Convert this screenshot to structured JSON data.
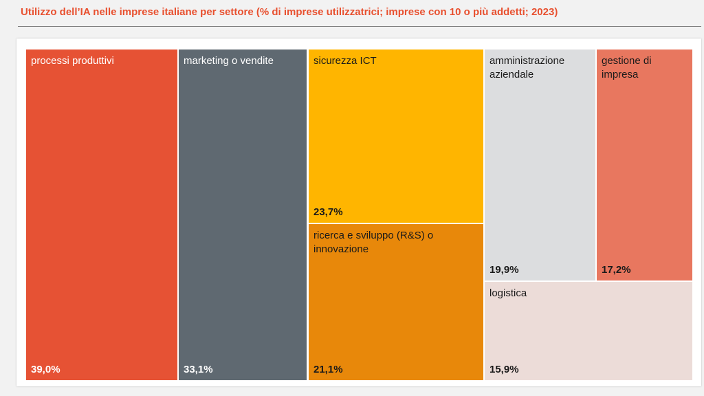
{
  "header": {
    "title": "Utilizzo dell’IA nelle imprese italiane per settore (% di imprese utilizzatrici; imprese con 10 o più addetti; 2023)"
  },
  "chart_data": {
    "type": "treemap",
    "title": "Utilizzo dell’IA nelle imprese italiane per settore (% di imprese utilizzatrici; imprese con 10 o più addetti; 2023)",
    "unit": "%",
    "items": [
      {
        "label": "processi produttivi",
        "value": 39.0,
        "display": "39,0%",
        "color": "#e65234",
        "text_color": "#ffffff"
      },
      {
        "label": "marketing o vendite",
        "value": 33.1,
        "display": "33,1%",
        "color": "#5f6971",
        "text_color": "#ffffff"
      },
      {
        "label": "sicurezza ICT",
        "value": 23.7,
        "display": "23,7%",
        "color": "#ffb500",
        "text_color": "#1a1a1a"
      },
      {
        "label": "ricerca e sviluppo (R&S) o innovazione",
        "value": 21.1,
        "display": "21,1%",
        "color": "#e8880a",
        "text_color": "#1a1a1a"
      },
      {
        "label": "amministrazione aziendale",
        "value": 19.9,
        "display": "19,9%",
        "color": "#dcdddf",
        "text_color": "#1a1a1a"
      },
      {
        "label": "gestione di impresa",
        "value": 17.2,
        "display": "17,2%",
        "color": "#e8775f",
        "text_color": "#1a1a1a"
      },
      {
        "label": "logistica",
        "value": 15.9,
        "display": "15,9%",
        "color": "#ecdcd8",
        "text_color": "#1a1a1a"
      }
    ]
  }
}
